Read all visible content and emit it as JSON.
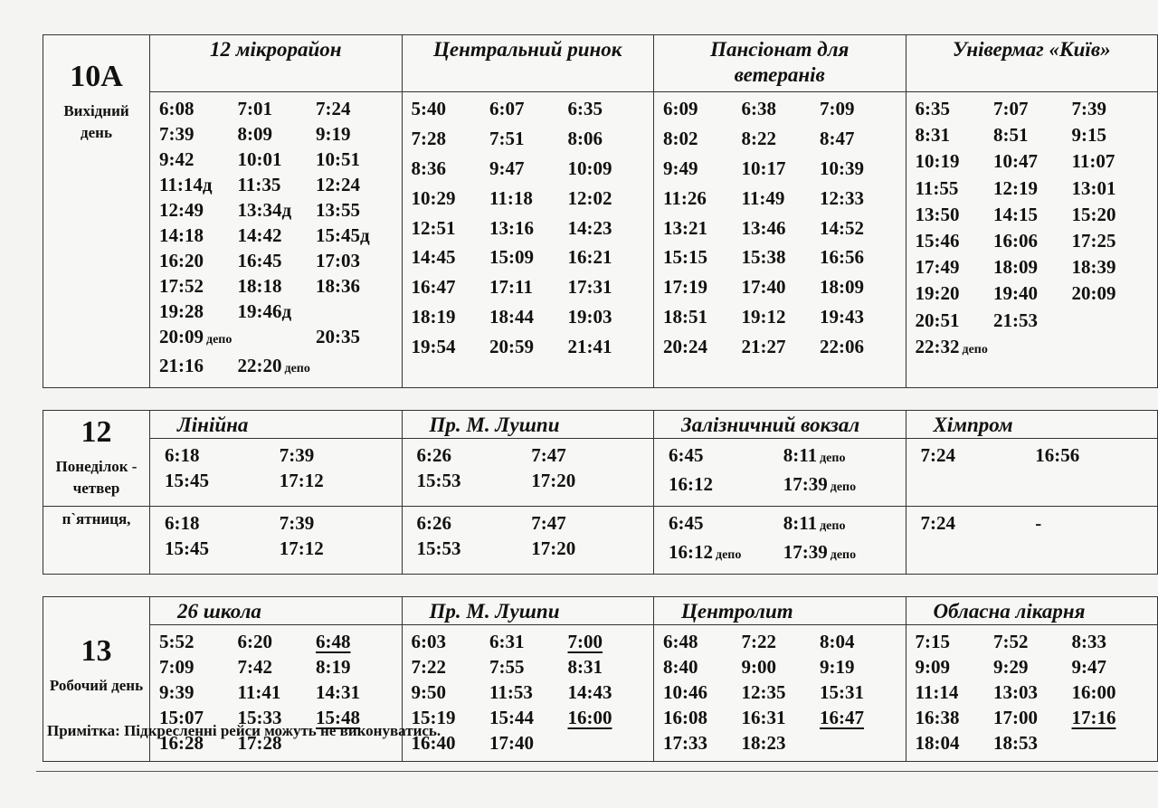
{
  "sections": [
    {
      "route": "10А",
      "stops": [
        "12 мікрорайон",
        "Центральний ринок",
        "Пансіонат для ветеранів",
        "Універмаг «Київ»"
      ],
      "rows": [
        {
          "label": "Вихідний день",
          "cells": [
            [
              "6:08",
              "7:01",
              "7:24",
              "7:39",
              "8:09",
              "9:19",
              "9:42",
              "10:01",
              "10:51",
              "11:14д",
              "11:35",
              "12:24",
              "12:49",
              "13:34д",
              "13:55",
              "14:18",
              "14:42",
              "15:45д",
              "16:20",
              "16:45",
              "17:03",
              "17:52",
              "18:18",
              "18:36",
              "19:28",
              "19:46д",
              {
                "time": "20:09",
                "note": "депо"
              },
              "20:35",
              "21:16",
              {
                "time": "22:20",
                "note": "депо"
              }
            ],
            [
              "5:40",
              "6:07",
              "6:35",
              "7:28",
              "7:51",
              "8:06",
              "8:36",
              "9:47",
              "10:09",
              "10:29",
              "11:18",
              "12:02",
              "12:51",
              "13:16",
              "14:23",
              "14:45",
              "15:09",
              "16:21",
              "16:47",
              "17:11",
              "17:31",
              "18:19",
              "18:44",
              "19:03",
              "19:54",
              "20:59",
              "21:41"
            ],
            [
              "6:09",
              "6:38",
              "7:09",
              "8:02",
              "8:22",
              "8:47",
              "9:49",
              "10:17",
              "10:39",
              "11:26",
              "11:49",
              "12:33",
              "13:21",
              "13:46",
              "14:52",
              "15:15",
              "15:38",
              "16:56",
              "17:19",
              "17:40",
              "18:09",
              "18:51",
              "19:12",
              "19:43",
              "20:24",
              "21:27",
              "22:06"
            ],
            [
              "6:35",
              "7:07",
              "7:39",
              "8:31",
              "8:51",
              "9:15",
              "10:19",
              "10:47",
              "11:07",
              "11:55",
              "12:19",
              "13:01",
              "13:50",
              "14:15",
              "15:20",
              "15:46",
              "16:06",
              "17:25",
              "17:49",
              "18:09",
              "18:39",
              "19:20",
              "19:40",
              "20:09",
              "20:51",
              "21:53",
              {
                "time": "22:32",
                "note": "депо"
              }
            ]
          ]
        }
      ]
    },
    {
      "route": "12",
      "stops": [
        "Лінійна",
        "Пр. М. Лушпи",
        "Залізничний вокзал",
        "Хімпром"
      ],
      "rows": [
        {
          "label": "Понеділок - четвер",
          "cells": [
            [
              "6:18",
              "7:39",
              "15:45",
              "17:12"
            ],
            [
              "6:26",
              "7:47",
              "15:53",
              "17:20"
            ],
            [
              "6:45",
              {
                "time": "8:11",
                "note": "депо"
              },
              "16:12",
              {
                "time": "17:39",
                "note": "депо"
              }
            ],
            [
              "7:24",
              "16:56"
            ]
          ]
        },
        {
          "label": "п`ятниця,",
          "cells": [
            [
              "6:18",
              "7:39",
              "15:45",
              "17:12"
            ],
            [
              "6:26",
              "7:47",
              "15:53",
              "17:20"
            ],
            [
              "6:45",
              {
                "time": "8:11",
                "note": "депо"
              },
              {
                "time": "16:12",
                "note": "депо"
              },
              {
                "time": "17:39",
                "note": "депо"
              }
            ],
            [
              "7:24",
              "-"
            ]
          ]
        }
      ]
    },
    {
      "route": "13",
      "stops": [
        "26 школа",
        "Пр. М. Лушпи",
        "Центролит",
        "Обласна лікарня"
      ],
      "rows": [
        {
          "label": "Робочий день",
          "cells": [
            [
              "5:52",
              "6:20",
              {
                "time": "6:48",
                "underlined": true
              },
              "7:09",
              "7:42",
              "8:19",
              "9:39",
              "11:41",
              "14:31",
              "15:07",
              "15:33",
              {
                "time": "15:48",
                "underlined": true
              },
              "16:28",
              "17:28"
            ],
            [
              "6:03",
              "6:31",
              {
                "time": "7:00",
                "underlined": true
              },
              "7:22",
              "7:55",
              "8:31",
              "9:50",
              "11:53",
              "14:43",
              "15:19",
              "15:44",
              {
                "time": "16:00",
                "underlined": true
              },
              "16:40",
              "17:40"
            ],
            [
              "6:48",
              "7:22",
              "8:04",
              "8:40",
              "9:00",
              "9:19",
              "10:46",
              "12:35",
              "15:31",
              "16:08",
              "16:31",
              {
                "time": "16:47",
                "underlined": true
              },
              "17:33",
              "18:23"
            ],
            [
              "7:15",
              "7:52",
              "8:33",
              "9:09",
              "9:29",
              "9:47",
              "11:14",
              "13:03",
              "16:00",
              "16:38",
              "17:00",
              {
                "time": "17:16",
                "underlined": true
              },
              "18:04",
              "18:53"
            ]
          ]
        }
      ]
    }
  ],
  "footnote": "Примітка: Підкресленні рейси можуть не виконуватись."
}
